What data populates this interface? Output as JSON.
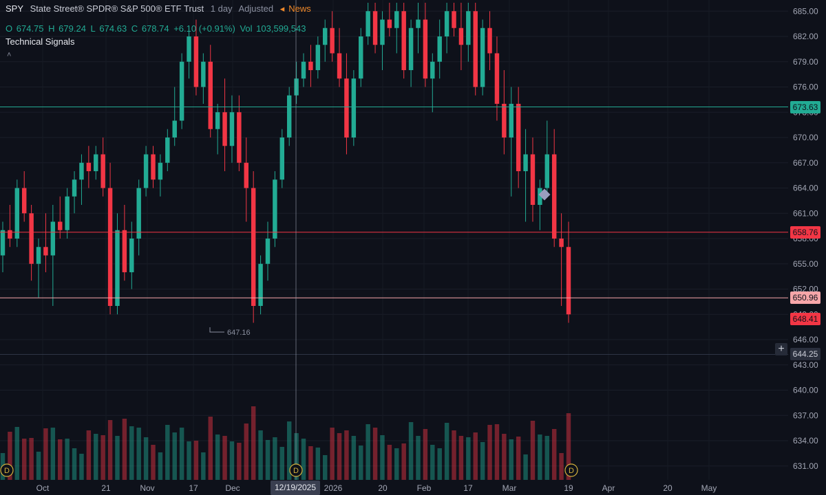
{
  "legend": {
    "symbol": "SPY",
    "name": "State Street® SPDR® S&P 500® ETF Trust",
    "interval": "1 day",
    "adjustment": "Adjusted",
    "news_label": "News"
  },
  "ohlc": {
    "open_label": "O",
    "open": "674.75",
    "high_label": "H",
    "high": "679.24",
    "low_label": "L",
    "low": "674.63",
    "close_label": "C",
    "close": "678.74",
    "change": "+6.10 (+0.91%)",
    "volume_label": "Vol",
    "volume": "103,599,543"
  },
  "indicator": {
    "label": "Technical Signals",
    "collapse_glyph": "˄"
  },
  "colors": {
    "up": "#22ab94",
    "down": "#f23645",
    "bg": "#0e111a",
    "crosshair": "#9aa0b0"
  },
  "icons": {
    "news": "speaker-icon",
    "add": "plus-icon",
    "dividend": "dividend-marker-icon",
    "signal": "diamond-signal-icon"
  },
  "price_tags": [
    {
      "value": "673.63",
      "color": "#22ab94"
    },
    {
      "value": "658.76",
      "color": "#f23645"
    },
    {
      "value": "650.96",
      "color": "#f7a6a9"
    },
    {
      "value": "648.41",
      "color": "#f23645"
    },
    {
      "value": "644.25",
      "color": "#2a2f3d"
    }
  ],
  "plus_label": "+",
  "crosshair_date": "12/19/2025",
  "low_annotation": "647.16",
  "dividend_marker": "D",
  "chart_data": {
    "type": "candlestick",
    "y_axis": {
      "ticks": [
        "685.00",
        "682.00",
        "679.00",
        "676.00",
        "673.00",
        "670.00",
        "667.00",
        "664.00",
        "661.00",
        "658.00",
        "655.00",
        "652.00",
        "649.00",
        "646.00",
        "643.00",
        "640.00",
        "637.00",
        "634.00",
        "631.00"
      ],
      "ylim": [
        630,
        686
      ]
    },
    "x_axis": {
      "labels": [
        "Oct",
        "21",
        "Nov",
        "17",
        "Dec",
        "12/19/2025",
        "2026",
        "20",
        "Feb",
        "17",
        "Mar",
        "19",
        "Apr",
        "20",
        "May"
      ]
    },
    "horizontal_lines": [
      673.63,
      658.76,
      650.96,
      644.25
    ],
    "candles": [
      {
        "o": 656,
        "h": 660,
        "l": 654,
        "c": 659
      },
      {
        "o": 659,
        "h": 662,
        "l": 657,
        "c": 658
      },
      {
        "o": 658,
        "h": 665,
        "l": 657,
        "c": 664
      },
      {
        "o": 664,
        "h": 666,
        "l": 660,
        "c": 661
      },
      {
        "o": 661,
        "h": 662,
        "l": 653,
        "c": 655
      },
      {
        "o": 655,
        "h": 658,
        "l": 651,
        "c": 657
      },
      {
        "o": 657,
        "h": 661,
        "l": 654,
        "c": 656
      },
      {
        "o": 656,
        "h": 662,
        "l": 650,
        "c": 660
      },
      {
        "o": 660,
        "h": 663,
        "l": 658,
        "c": 659
      },
      {
        "o": 659,
        "h": 664,
        "l": 658,
        "c": 663
      },
      {
        "o": 663,
        "h": 666,
        "l": 661,
        "c": 665
      },
      {
        "o": 665,
        "h": 668,
        "l": 662,
        "c": 667
      },
      {
        "o": 667,
        "h": 669,
        "l": 664,
        "c": 666
      },
      {
        "o": 666,
        "h": 669,
        "l": 665,
        "c": 668
      },
      {
        "o": 668,
        "h": 670,
        "l": 663,
        "c": 664
      },
      {
        "o": 664,
        "h": 667,
        "l": 649,
        "c": 650
      },
      {
        "o": 650,
        "h": 661,
        "l": 649,
        "c": 659
      },
      {
        "o": 659,
        "h": 662,
        "l": 653,
        "c": 654
      },
      {
        "o": 654,
        "h": 660,
        "l": 652,
        "c": 658
      },
      {
        "o": 658,
        "h": 665,
        "l": 656,
        "c": 664
      },
      {
        "o": 664,
        "h": 669,
        "l": 663,
        "c": 668
      },
      {
        "o": 668,
        "h": 669,
        "l": 664,
        "c": 665
      },
      {
        "o": 665,
        "h": 668,
        "l": 663,
        "c": 667
      },
      {
        "o": 667,
        "h": 671,
        "l": 666,
        "c": 670
      },
      {
        "o": 670,
        "h": 676,
        "l": 669,
        "c": 672
      },
      {
        "o": 672,
        "h": 680,
        "l": 671,
        "c": 679
      },
      {
        "o": 679,
        "h": 683,
        "l": 677,
        "c": 682
      },
      {
        "o": 682,
        "h": 684,
        "l": 675,
        "c": 676
      },
      {
        "o": 676,
        "h": 680,
        "l": 674,
        "c": 679
      },
      {
        "o": 679,
        "h": 681,
        "l": 670,
        "c": 671
      },
      {
        "o": 671,
        "h": 674,
        "l": 668,
        "c": 673
      },
      {
        "o": 673,
        "h": 677,
        "l": 666,
        "c": 669
      },
      {
        "o": 669,
        "h": 675,
        "l": 667,
        "c": 673
      },
      {
        "o": 673,
        "h": 675,
        "l": 666,
        "c": 667
      },
      {
        "o": 667,
        "h": 670,
        "l": 660,
        "c": 664
      },
      {
        "o": 664,
        "h": 666,
        "l": 648,
        "c": 650
      },
      {
        "o": 650,
        "h": 656,
        "l": 649,
        "c": 655
      },
      {
        "o": 655,
        "h": 660,
        "l": 653,
        "c": 658
      },
      {
        "o": 658,
        "h": 666,
        "l": 657,
        "c": 665
      },
      {
        "o": 665,
        "h": 671,
        "l": 664,
        "c": 670
      },
      {
        "o": 670,
        "h": 676,
        "l": 669,
        "c": 675
      },
      {
        "o": 675,
        "h": 679,
        "l": 674,
        "c": 677
      },
      {
        "o": 677,
        "h": 680,
        "l": 676,
        "c": 679
      },
      {
        "o": 679,
        "h": 681,
        "l": 676,
        "c": 678
      },
      {
        "o": 678,
        "h": 682,
        "l": 677,
        "c": 681
      },
      {
        "o": 681,
        "h": 684,
        "l": 679,
        "c": 683
      },
      {
        "o": 683,
        "h": 685,
        "l": 679,
        "c": 680
      },
      {
        "o": 680,
        "h": 683,
        "l": 676,
        "c": 677
      },
      {
        "o": 677,
        "h": 680,
        "l": 668,
        "c": 670
      },
      {
        "o": 670,
        "h": 678,
        "l": 669,
        "c": 677
      },
      {
        "o": 677,
        "h": 683,
        "l": 676,
        "c": 682
      },
      {
        "o": 682,
        "h": 686,
        "l": 681,
        "c": 685
      },
      {
        "o": 685,
        "h": 686,
        "l": 680,
        "c": 681
      },
      {
        "o": 681,
        "h": 685,
        "l": 678,
        "c": 684
      },
      {
        "o": 684,
        "h": 686,
        "l": 682,
        "c": 683
      },
      {
        "o": 683,
        "h": 686,
        "l": 680,
        "c": 685
      },
      {
        "o": 685,
        "h": 686,
        "l": 677,
        "c": 678
      },
      {
        "o": 678,
        "h": 684,
        "l": 676,
        "c": 683
      },
      {
        "o": 683,
        "h": 686,
        "l": 680,
        "c": 684
      },
      {
        "o": 684,
        "h": 686,
        "l": 676,
        "c": 677
      },
      {
        "o": 677,
        "h": 680,
        "l": 673,
        "c": 679
      },
      {
        "o": 679,
        "h": 684,
        "l": 677,
        "c": 682
      },
      {
        "o": 682,
        "h": 686,
        "l": 680,
        "c": 685
      },
      {
        "o": 685,
        "h": 686,
        "l": 682,
        "c": 683
      },
      {
        "o": 683,
        "h": 686,
        "l": 678,
        "c": 681
      },
      {
        "o": 681,
        "h": 686,
        "l": 679,
        "c": 685
      },
      {
        "o": 685,
        "h": 686,
        "l": 675,
        "c": 676
      },
      {
        "o": 676,
        "h": 684,
        "l": 675,
        "c": 683
      },
      {
        "o": 683,
        "h": 685,
        "l": 678,
        "c": 680
      },
      {
        "o": 680,
        "h": 682,
        "l": 672,
        "c": 674
      },
      {
        "o": 674,
        "h": 678,
        "l": 668,
        "c": 670
      },
      {
        "o": 670,
        "h": 676,
        "l": 663,
        "c": 674
      },
      {
        "o": 674,
        "h": 676,
        "l": 664,
        "c": 666
      },
      {
        "o": 666,
        "h": 671,
        "l": 660,
        "c": 668
      },
      {
        "o": 668,
        "h": 670,
        "l": 660,
        "c": 662
      },
      {
        "o": 662,
        "h": 665,
        "l": 659,
        "c": 664
      },
      {
        "o": 664,
        "h": 672,
        "l": 663,
        "c": 668
      },
      {
        "o": 668,
        "h": 671,
        "l": 657,
        "c": 658
      },
      {
        "o": 658,
        "h": 661,
        "l": 650,
        "c": 657
      },
      {
        "o": 657,
        "h": 660,
        "l": 648,
        "c": 649
      }
    ],
    "volume_ylim": [
      0,
      1
    ],
    "low_marker": 647.16
  }
}
